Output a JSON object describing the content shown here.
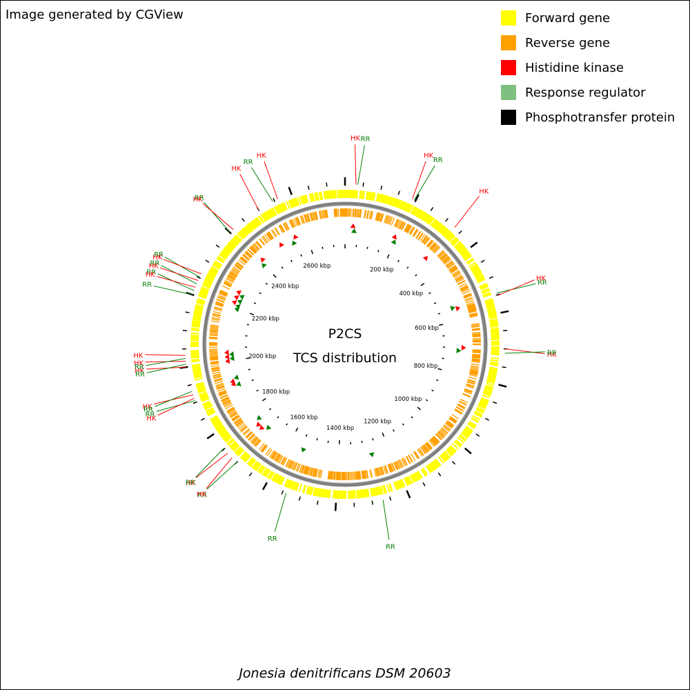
{
  "credit": "Image generated by CGView",
  "center": {
    "title": "P2CS",
    "subtitle": "TCS distribution"
  },
  "organism": "Jonesia denitrificans DSM 20603",
  "legend": [
    {
      "label": "Forward gene",
      "color": "#ffff00"
    },
    {
      "label": "Reverse gene",
      "color": "#ffa000"
    },
    {
      "label": "Histidine kinase",
      "color": "#ff0000"
    },
    {
      "label": "Response regulator",
      "color": "#7fbf7f"
    },
    {
      "label": "Phosphotransfer protein",
      "color": "#000000"
    }
  ],
  "colors": {
    "forward": "#ffff00",
    "reverse": "#ffa000",
    "hk": "#ff0000",
    "rr": "#008000",
    "backbone": "#808080",
    "tick": "#000000"
  },
  "genome": {
    "length_kbp": 2750,
    "tick_label_interval_kbp": 200,
    "tick_interval_kbp": 50
  },
  "scale_labels": [
    "200 kbp",
    "400 kbp",
    "600 kbp",
    "800 kbp",
    "1000 kbp",
    "1200 kbp",
    "1400 kbp",
    "1600 kbp",
    "1800 kbp",
    "2000 kbp",
    "2200 kbp",
    "2400 kbp",
    "2600 kbp"
  ],
  "features": [
    {
      "type": "HK",
      "position_kbp": 30
    },
    {
      "type": "RR",
      "position_kbp": 35
    },
    {
      "type": "HK",
      "position_kbp": 190
    },
    {
      "type": "RR",
      "position_kbp": 196
    },
    {
      "type": "HK",
      "position_kbp": 330
    },
    {
      "type": "RR",
      "position_kbp": 545
    },
    {
      "type": "HK",
      "position_kbp": 552
    },
    {
      "type": "HK",
      "position_kbp": 700
    },
    {
      "type": "RR",
      "position_kbp": 712
    },
    {
      "type": "RR",
      "position_kbp": 1270
    },
    {
      "type": "RR",
      "position_kbp": 1540
    },
    {
      "type": "RR",
      "position_kbp": 1700
    },
    {
      "type": "HK",
      "position_kbp": 1718
    },
    {
      "type": "HK",
      "position_kbp": 1735
    },
    {
      "type": "RR",
      "position_kbp": 1752
    },
    {
      "type": "RR",
      "position_kbp": 1905
    },
    {
      "type": "HK",
      "position_kbp": 1912
    },
    {
      "type": "HK",
      "position_kbp": 1922
    },
    {
      "type": "RR",
      "position_kbp": 1932
    },
    {
      "type": "HK",
      "position_kbp": 2000
    },
    {
      "type": "RR",
      "position_kbp": 2008
    },
    {
      "type": "HK",
      "position_kbp": 2016
    },
    {
      "type": "RR",
      "position_kbp": 2024
    },
    {
      "type": "HK",
      "position_kbp": 2032
    },
    {
      "type": "RR",
      "position_kbp": 2200
    },
    {
      "type": "RR",
      "position_kbp": 2212
    },
    {
      "type": "HK",
      "position_kbp": 2222
    },
    {
      "type": "RR",
      "position_kbp": 2232
    },
    {
      "type": "HK",
      "position_kbp": 2242
    },
    {
      "type": "RR",
      "position_kbp": 2252
    },
    {
      "type": "HK",
      "position_kbp": 2262
    },
    {
      "type": "RR",
      "position_kbp": 2400
    },
    {
      "type": "HK",
      "position_kbp": 2412
    },
    {
      "type": "HK",
      "position_kbp": 2500
    },
    {
      "type": "RR",
      "position_kbp": 2545
    },
    {
      "type": "HK",
      "position_kbp": 2560
    }
  ]
}
